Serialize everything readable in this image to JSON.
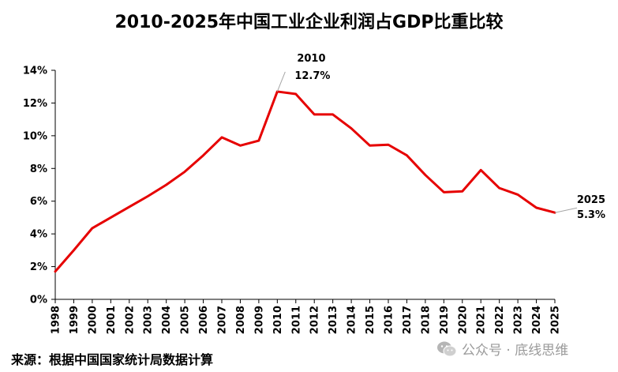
{
  "title": "2010-2025年中国工业企业利润占GDP比重比较",
  "source": "来源：根据中国国家统计局数据计算",
  "watermark": {
    "icon": "wechat-icon",
    "text": "公众号 · 底线思维"
  },
  "colors": {
    "line": "#e60000",
    "axis": "#000000",
    "leader": "#a6a6a6",
    "watermark": "#9a9a9a"
  },
  "chart_data": {
    "type": "line",
    "title": "2010-2025年中国工业企业利润占GDP比重比较",
    "xlabel": "",
    "ylabel": "",
    "grid": false,
    "legend": "none",
    "ylim": [
      0,
      14
    ],
    "y_ticks": [
      "0%",
      "2%",
      "4%",
      "6%",
      "8%",
      "10%",
      "12%",
      "14%"
    ],
    "y_tick_values": [
      0,
      2,
      4,
      6,
      8,
      10,
      12,
      14
    ],
    "categories": [
      "1998",
      "1999",
      "2000",
      "2001",
      "2002",
      "2003",
      "2004",
      "2005",
      "2006",
      "2007",
      "2008",
      "2009",
      "2010",
      "2011",
      "2012",
      "2013",
      "2014",
      "2015",
      "2016",
      "2017",
      "2018",
      "2019",
      "2020",
      "2021",
      "2022",
      "2023",
      "2024",
      "2025"
    ],
    "series": [
      {
        "values": [
          1.7,
          3.0,
          4.35,
          5.0,
          5.65,
          6.3,
          7.0,
          7.8,
          8.8,
          9.9,
          9.4,
          9.7,
          12.7,
          12.55,
          11.3,
          11.3,
          10.45,
          9.4,
          9.45,
          8.8,
          7.6,
          6.55,
          6.6,
          7.9,
          6.8,
          6.4,
          5.6,
          5.3
        ]
      }
    ],
    "annotations": [
      {
        "category": "2010",
        "year": "2010",
        "value": "12.7%"
      },
      {
        "category": "2025",
        "year": "2025",
        "value": "5.3%"
      }
    ]
  }
}
